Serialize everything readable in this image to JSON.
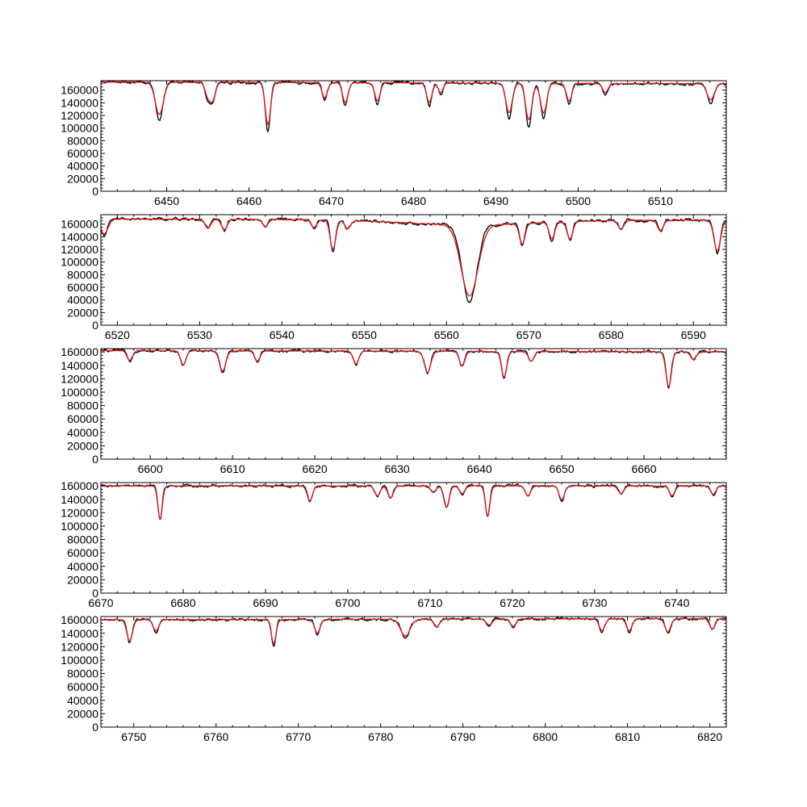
{
  "chart_data": [
    {
      "type": "line",
      "xlim": [
        6442,
        6518
      ],
      "ylim": [
        0,
        175000
      ],
      "xticks": [
        6450,
        6460,
        6470,
        6480,
        6490,
        6500,
        6510
      ],
      "yticks": [
        0,
        20000,
        40000,
        60000,
        80000,
        100000,
        120000,
        140000,
        160000
      ],
      "continuum": [
        173000,
        170000
      ],
      "lines": [
        [
          6449.1,
          60000,
          0.45
        ],
        [
          6455.0,
          25000,
          0.3
        ],
        [
          6455.6,
          30000,
          0.3
        ],
        [
          6462.3,
          78000,
          0.3
        ],
        [
          6469.2,
          28000,
          0.3
        ],
        [
          6471.7,
          37000,
          0.3
        ],
        [
          6475.6,
          33000,
          0.3
        ],
        [
          6481.9,
          36000,
          0.3
        ],
        [
          6483.3,
          18000,
          0.25
        ],
        [
          6491.6,
          55000,
          0.35
        ],
        [
          6494.0,
          68000,
          0.35
        ],
        [
          6495.8,
          55000,
          0.35
        ],
        [
          6498.9,
          33000,
          0.3
        ],
        [
          6503.3,
          17000,
          0.3
        ],
        [
          6516.1,
          30000,
          0.4
        ]
      ],
      "series": [
        {
          "name": "",
          "color": "#000000",
          "depth_scale": 1.0,
          "width_scale": 1.0,
          "wiggle": 2500
        },
        {
          "name": "",
          "color": "#e31a1c",
          "depth_scale": 0.85,
          "width_scale": 1.1,
          "wiggle": 500
        }
      ]
    },
    {
      "type": "line",
      "xlim": [
        6518,
        6594
      ],
      "ylim": [
        0,
        175000
      ],
      "xticks": [
        6520,
        6530,
        6540,
        6550,
        6560,
        6570,
        6580,
        6590
      ],
      "yticks": [
        0,
        20000,
        40000,
        60000,
        80000,
        100000,
        120000,
        140000,
        160000
      ],
      "continuum": [
        168000,
        166000
      ],
      "lines": [
        [
          6518.4,
          25000,
          0.4
        ],
        [
          6531.0,
          15000,
          0.3
        ],
        [
          6533.0,
          18000,
          0.3
        ],
        [
          6538.0,
          12000,
          0.3
        ],
        [
          6543.9,
          13000,
          0.3
        ],
        [
          6546.2,
          50000,
          0.3
        ],
        [
          6548.0,
          14000,
          0.3
        ],
        [
          6569.2,
          35000,
          0.3
        ],
        [
          6572.8,
          28000,
          0.3
        ],
        [
          6575.0,
          30000,
          0.3
        ],
        [
          6581.2,
          15000,
          0.3
        ],
        [
          6586.0,
          18000,
          0.3
        ],
        [
          6592.9,
          52000,
          0.35
        ]
      ],
      "broad_lines": [
        [
          6562.8,
          122000,
          0.9,
          8000,
          8
        ]
      ],
      "series": [
        {
          "name": "",
          "color": "#000000",
          "depth_scale": 1.0,
          "width_scale": 1.0,
          "wiggle": 2500
        },
        {
          "name": "",
          "color": "#e31a1c",
          "depth_scale": 0.92,
          "width_scale": 1.15,
          "wiggle": 500
        }
      ]
    },
    {
      "type": "line",
      "xlim": [
        6594,
        6670
      ],
      "ylim": [
        0,
        165000
      ],
      "xticks": [
        6600,
        6610,
        6620,
        6630,
        6640,
        6650,
        6660
      ],
      "yticks": [
        0,
        20000,
        40000,
        60000,
        80000,
        100000,
        120000,
        140000,
        160000
      ],
      "continuum": [
        162000,
        160000
      ],
      "lines": [
        [
          6597.5,
          15000,
          0.3
        ],
        [
          6604.0,
          22000,
          0.3
        ],
        [
          6608.8,
          32000,
          0.35
        ],
        [
          6613.0,
          16000,
          0.3
        ],
        [
          6625.0,
          20000,
          0.3
        ],
        [
          6633.7,
          33000,
          0.35
        ],
        [
          6637.9,
          23000,
          0.3
        ],
        [
          6643.0,
          40000,
          0.3
        ],
        [
          6646.3,
          15000,
          0.3
        ],
        [
          6663.0,
          55000,
          0.3
        ],
        [
          6666.0,
          12000,
          0.3
        ]
      ],
      "series": [
        {
          "name": "",
          "color": "#000000",
          "depth_scale": 1.0,
          "width_scale": 1.0,
          "wiggle": 2000
        },
        {
          "name": "",
          "color": "#e31a1c",
          "depth_scale": 0.95,
          "width_scale": 1.1,
          "wiggle": 500
        }
      ]
    },
    {
      "type": "line",
      "xlim": [
        6670,
        6746
      ],
      "ylim": [
        0,
        165000
      ],
      "xticks": [
        6670,
        6680,
        6690,
        6700,
        6710,
        6720,
        6730,
        6740
      ],
      "yticks": [
        0,
        20000,
        40000,
        60000,
        80000,
        100000,
        120000,
        140000,
        160000
      ],
      "continuum": [
        160000,
        160000
      ],
      "lines": [
        [
          6677.2,
          52000,
          0.25
        ],
        [
          6695.4,
          23000,
          0.3
        ],
        [
          6703.6,
          15000,
          0.3
        ],
        [
          6705.2,
          19000,
          0.3
        ],
        [
          6710.4,
          10000,
          0.3
        ],
        [
          6712.0,
          33000,
          0.3
        ],
        [
          6713.9,
          12000,
          0.3
        ],
        [
          6717.0,
          47000,
          0.25
        ],
        [
          6721.9,
          15000,
          0.3
        ],
        [
          6726.0,
          22000,
          0.3
        ],
        [
          6733.2,
          12000,
          0.3
        ],
        [
          6739.4,
          15000,
          0.3
        ],
        [
          6744.4,
          13000,
          0.3
        ]
      ],
      "series": [
        {
          "name": "",
          "color": "#000000",
          "depth_scale": 1.0,
          "width_scale": 1.0,
          "wiggle": 2000
        },
        {
          "name": "",
          "color": "#e31a1c",
          "depth_scale": 0.95,
          "width_scale": 1.1,
          "wiggle": 500
        }
      ]
    },
    {
      "type": "line",
      "xlim": [
        6746,
        6822
      ],
      "ylim": [
        0,
        165000
      ],
      "xticks": [
        6750,
        6760,
        6770,
        6780,
        6790,
        6800,
        6810,
        6820
      ],
      "yticks": [
        0,
        20000,
        40000,
        60000,
        80000,
        100000,
        120000,
        140000,
        160000
      ],
      "continuum": [
        160000,
        162000
      ],
      "lines": [
        [
          6749.5,
          35000,
          0.3
        ],
        [
          6752.7,
          18000,
          0.3
        ],
        [
          6767.0,
          40000,
          0.25
        ],
        [
          6772.3,
          22000,
          0.3
        ],
        [
          6783.0,
          28000,
          0.5
        ],
        [
          6786.8,
          13000,
          0.3
        ],
        [
          6793.2,
          10000,
          0.3
        ],
        [
          6796.1,
          12000,
          0.3
        ],
        [
          6806.9,
          20000,
          0.3
        ],
        [
          6810.2,
          20000,
          0.3
        ],
        [
          6814.9,
          22000,
          0.3
        ],
        [
          6820.3,
          17000,
          0.3
        ]
      ],
      "series": [
        {
          "name": "",
          "color": "#000000",
          "depth_scale": 1.0,
          "width_scale": 1.0,
          "wiggle": 2000
        },
        {
          "name": "",
          "color": "#e31a1c",
          "depth_scale": 0.9,
          "width_scale": 1.15,
          "wiggle": 500
        }
      ]
    }
  ]
}
